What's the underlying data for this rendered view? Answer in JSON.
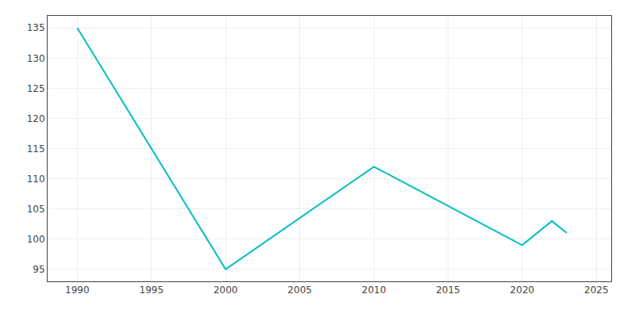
{
  "chart_data": {
    "type": "line",
    "x": [
      1990,
      2000,
      2010,
      2020,
      2022,
      2023
    ],
    "values": [
      135,
      95,
      112,
      99,
      103,
      101
    ],
    "color": "#00BFBF",
    "xlim": [
      1988,
      2026
    ],
    "ylim": [
      93,
      137
    ],
    "xticks": [
      1990,
      1995,
      2000,
      2005,
      2010,
      2015,
      2020,
      2025
    ],
    "yticks": [
      95,
      100,
      105,
      110,
      115,
      120,
      125,
      130,
      135
    ],
    "grid": true
  }
}
